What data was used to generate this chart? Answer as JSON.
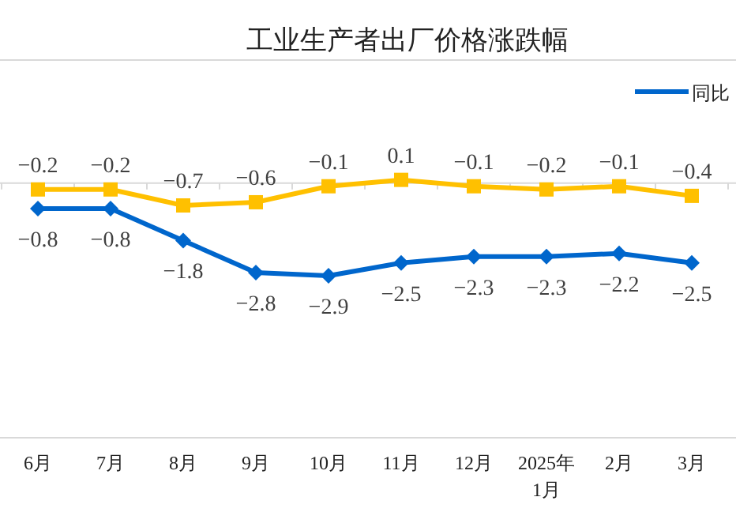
{
  "chart_data": {
    "type": "line",
    "title": "工业生产者出厂价格涨跌幅",
    "categories": [
      "6月",
      "7月",
      "8月",
      "9月",
      "10月",
      "11月",
      "12月",
      "2025年1月",
      "2月",
      "3月"
    ],
    "series": [
      {
        "name": "同比",
        "color": "#0066cc",
        "marker": "diamond",
        "values": [
          -0.8,
          -0.8,
          -1.8,
          -2.8,
          -2.9,
          -2.5,
          -2.3,
          -2.3,
          -2.2,
          -2.5
        ]
      },
      {
        "color": "#ffc000",
        "marker": "square",
        "values": [
          -0.2,
          -0.2,
          -0.7,
          -0.6,
          -0.1,
          0.1,
          -0.1,
          -0.2,
          -0.1,
          -0.4
        ]
      }
    ],
    "data_labels": true,
    "legend": "top right",
    "grid": false
  }
}
